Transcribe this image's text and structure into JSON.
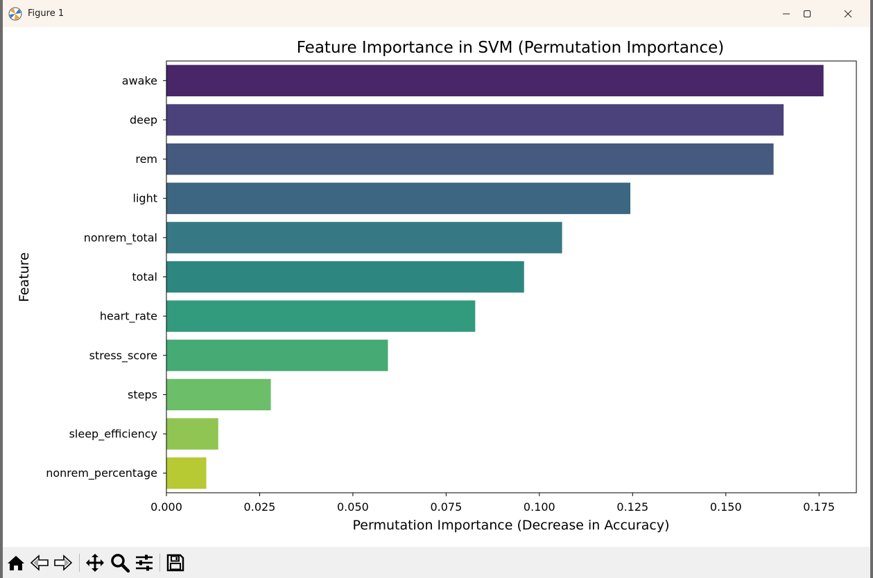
{
  "window": {
    "title": "Figure 1"
  },
  "toolbar": {
    "tools": [
      "home-icon",
      "back-arrow-icon",
      "forward-arrow-icon",
      "pan-icon",
      "zoom-icon",
      "configure-subplots-icon",
      "save-icon"
    ]
  },
  "chart_data": {
    "type": "bar",
    "orientation": "horizontal",
    "title": "Feature Importance in SVM (Permutation Importance)",
    "xlabel": "Permutation Importance (Decrease in Accuracy)",
    "ylabel": "Feature",
    "categories": [
      "awake",
      "deep",
      "rem",
      "light",
      "nonrem_total",
      "total",
      "heart_rate",
      "stress_score",
      "steps",
      "sleep_efficiency",
      "nonrem_percentage"
    ],
    "values": [
      0.1762,
      0.1655,
      0.1628,
      0.1244,
      0.1061,
      0.0959,
      0.0828,
      0.0594,
      0.028,
      0.0139,
      0.0107
    ],
    "colors": [
      "#482667",
      "#4b417b",
      "#455a7f",
      "#3d6682",
      "#367985",
      "#2e8681",
      "#339b7d",
      "#45aa74",
      "#6cbe69",
      "#90c553",
      "#b7c933"
    ],
    "xlim": [
      0,
      0.185
    ],
    "xticks": [
      0.0,
      0.025,
      0.05,
      0.075,
      0.1,
      0.125,
      0.15,
      0.175
    ],
    "xtick_labels": [
      "0.000",
      "0.025",
      "0.050",
      "0.075",
      "0.100",
      "0.125",
      "0.150",
      "0.175"
    ],
    "grid": false,
    "legend": "none"
  }
}
